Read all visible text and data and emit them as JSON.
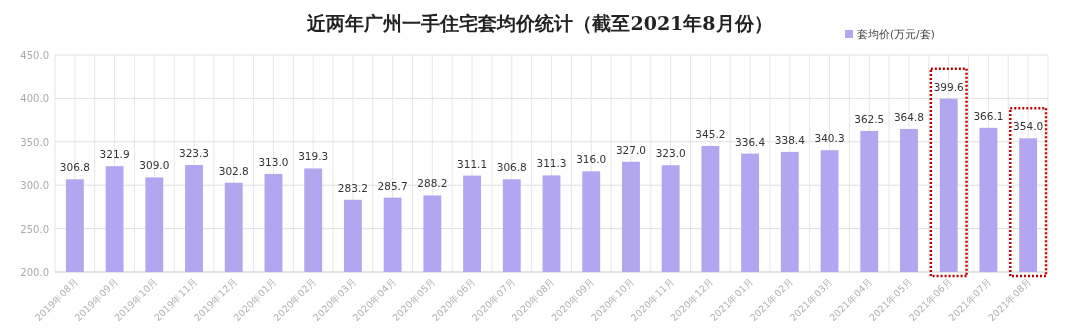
{
  "chart_data": {
    "type": "bar",
    "title": "近两年广州一手住宅套均价统计（截至2021年8月份）",
    "categories": [
      "2019年08月",
      "2019年09月",
      "2019年10月",
      "2019年11月",
      "2019年12月",
      "2020年01月",
      "2020年02月",
      "2020年03月",
      "2020年04月",
      "2020年05月",
      "2020年06月",
      "2020年07月",
      "2020年08月",
      "2020年09月",
      "2020年10月",
      "2020年11月",
      "2020年12月",
      "2021年01月",
      "2021年02月",
      "2021年03月",
      "2021年04月",
      "2021年05月",
      "2021年06月",
      "2021年07月",
      "2021年08月"
    ],
    "series": [
      {
        "name": "套均价(万元/套)",
        "color": "#b3a6f0",
        "values": [
          306.8,
          321.9,
          309.0,
          323.3,
          302.8,
          313.0,
          319.3,
          283.2,
          285.7,
          288.2,
          311.1,
          306.8,
          311.3,
          316.0,
          327.0,
          323.0,
          345.2,
          336.4,
          338.4,
          340.3,
          362.5,
          364.8,
          399.6,
          366.1,
          354.0
        ],
        "value_labels": [
          "306.8",
          "321.9",
          "309.0",
          "323.3",
          "302.8",
          "313.0",
          "319.3",
          "283.2",
          "285.7",
          "288.2",
          "311.1",
          "306.8",
          "311.3",
          "316.0",
          "327.0",
          "323.0",
          "345.2",
          "336.4",
          "338.4",
          "340.3",
          "362.5",
          "364.8",
          "399.6",
          "366.1",
          "354.0"
        ]
      }
    ],
    "ylim": [
      200,
      450
    ],
    "yticks": [
      {
        "value": 200,
        "label": "200.0"
      },
      {
        "value": 250,
        "label": "250.0"
      },
      {
        "value": 300,
        "label": "300.0"
      },
      {
        "value": 350,
        "label": "350.0"
      },
      {
        "value": 400,
        "label": "400.0"
      },
      {
        "value": 450,
        "label": "450.0"
      }
    ],
    "grid": true,
    "legend": "top right"
  }
}
